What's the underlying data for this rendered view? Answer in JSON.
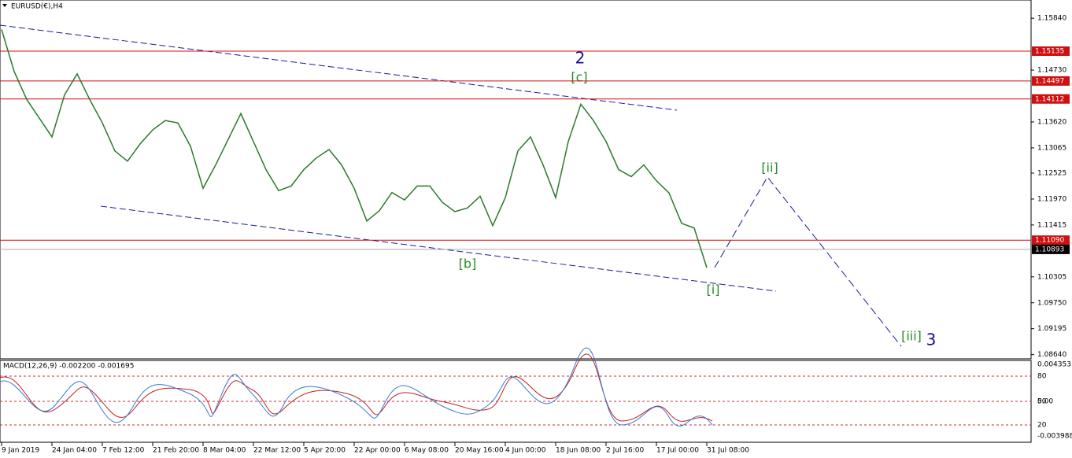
{
  "chart_data": {
    "type": "line",
    "title": "EURUSD(€),H4",
    "color": "#2a7a2a",
    "x": [
      0,
      1,
      2,
      3,
      4,
      5,
      6,
      7,
      8,
      9,
      10,
      11,
      12,
      13,
      14,
      15,
      16,
      17,
      18,
      19,
      20,
      21,
      22,
      23,
      24,
      25,
      26,
      27,
      28,
      29,
      30,
      31,
      32,
      33,
      34,
      35,
      36,
      37,
      38,
      39,
      40,
      41,
      42,
      43,
      44,
      45,
      46,
      47,
      48,
      49,
      50,
      51,
      52,
      53,
      54,
      55,
      56
    ],
    "values": [
      1.156,
      1.147,
      1.141,
      1.137,
      1.133,
      1.142,
      1.1465,
      1.141,
      1.136,
      1.13,
      1.1278,
      1.1315,
      1.1345,
      1.1365,
      1.136,
      1.131,
      1.122,
      1.127,
      1.1325,
      1.138,
      1.132,
      1.126,
      1.1215,
      1.1225,
      1.126,
      1.1285,
      1.1303,
      1.127,
      1.122,
      1.115,
      1.1172,
      1.1211,
      1.1195,
      1.1225,
      1.1225,
      1.119,
      1.117,
      1.1178,
      1.1203,
      1.114,
      1.12,
      1.13,
      1.133,
      1.127,
      1.12,
      1.132,
      1.14,
      1.1365,
      1.132,
      1.126,
      1.1245,
      1.127,
      1.1236,
      1.121,
      1.1145,
      1.1135,
      1.105
    ],
    "xlim": [
      -0.125,
      81.75
    ],
    "ylim": [
      1.0855,
      1.1623
    ],
    "yticks": [
      {
        "value": 1.1584,
        "label": "1.15840"
      },
      {
        "value": 1.1473,
        "label": "1.14730"
      },
      {
        "value": 1.1362,
        "label": "1.13620"
      },
      {
        "value": 1.13065,
        "label": "1.13065"
      },
      {
        "value": 1.12525,
        "label": "1.12525"
      },
      {
        "value": 1.1197,
        "label": "1.11970"
      },
      {
        "value": 1.11415,
        "label": "1.11415"
      },
      {
        "value": 1.10305,
        "label": "1.10305"
      },
      {
        "value": 1.0975,
        "label": "1.09750"
      },
      {
        "value": 1.09195,
        "label": "1.09195"
      },
      {
        "value": 1.0864,
        "label": "1.08640"
      }
    ],
    "xticks": [
      {
        "value": 0,
        "label": "9 Jan 2019"
      },
      {
        "value": 4,
        "label": "24 Jan 04:00"
      },
      {
        "value": 8,
        "label": "7 Feb 12:00"
      },
      {
        "value": 12,
        "label": "21 Feb 20:00"
      },
      {
        "value": 16,
        "label": "8 Mar 04:00"
      },
      {
        "value": 20,
        "label": "22 Mar 12:00"
      },
      {
        "value": 24,
        "label": "5 Apr 20:00"
      },
      {
        "value": 28,
        "label": "22 Apr 00:00"
      },
      {
        "value": 32,
        "label": "6 May 08:00"
      },
      {
        "value": 36,
        "label": "20 May 16:00"
      },
      {
        "value": 40,
        "label": "4 Jun 00:00"
      },
      {
        "value": 44,
        "label": "18 Jun 08:00"
      },
      {
        "value": 48,
        "label": "2 Jul 16:00"
      },
      {
        "value": 52,
        "label": "17 Jul 00:00"
      },
      {
        "value": 56,
        "label": "31 Jul 08:00"
      }
    ],
    "levels": [
      {
        "value": 1.15135,
        "label": "1.15135"
      },
      {
        "value": 1.14497,
        "label": "1.14497"
      },
      {
        "value": 1.14112,
        "label": "1.14112"
      },
      {
        "value": 1.1109,
        "label": "1.11090"
      }
    ],
    "level_color": "#d01010",
    "current_price": {
      "value": 1.10893,
      "label": "1.10893"
    },
    "annotations": [
      "2",
      "[c]",
      "[b]",
      "[i]",
      "[ii]",
      "[iii]",
      "3"
    ],
    "macd": {
      "title": "MACD(12,26,9) -0.002200 -0.001695",
      "axis_labels": [
        "0.004353",
        "80",
        "50",
        "0.00",
        "20",
        "-0.003988"
      ]
    }
  }
}
